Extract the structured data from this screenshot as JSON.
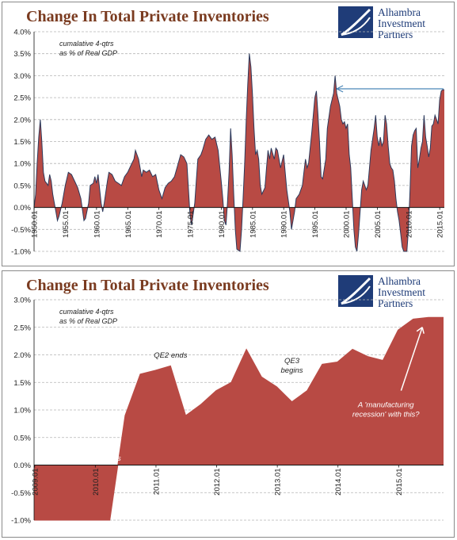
{
  "chart_data": [
    {
      "type": "area",
      "title": "Change In Total Private Inventories",
      "annotation": "cumalative 4-qtrs\nas % of Real GDP",
      "ylim": [
        -1.0,
        4.0
      ],
      "y_ticks": [
        "4.0%",
        "3.5%",
        "3.0%",
        "2.5%",
        "2.0%",
        "1.5%",
        "1.0%",
        "0.5%",
        "0.0%",
        "-0.5%",
        "-1.0%"
      ],
      "x_tick_labels": [
        "1950.01",
        "1955.01",
        "1960.01",
        "1965.01",
        "1970.01",
        "1975.01",
        "1980.01",
        "1985.01",
        "1990.01",
        "1995.01",
        "2000.01",
        "2005.01",
        "2010.01",
        "2015.01"
      ],
      "xlim": [
        1950.0,
        2015.75
      ],
      "grid": "horizontal dashed",
      "colors": {
        "fill": "#b84a44",
        "line": "#2c3a5c"
      },
      "arrow": {
        "direction": "left",
        "color": "#4a86b8"
      },
      "series": [
        {
          "values": [
            [
              1950.0,
              0.0
            ],
            [
              1950.25,
              0.3
            ],
            [
              1950.5,
              1.0
            ],
            [
              1950.75,
              1.6
            ],
            [
              1951.0,
              2.0
            ],
            [
              1951.25,
              1.5
            ],
            [
              1951.5,
              0.8
            ],
            [
              1951.75,
              0.6
            ],
            [
              1952.0,
              0.55
            ],
            [
              1952.25,
              0.5
            ],
            [
              1952.5,
              0.75
            ],
            [
              1952.75,
              0.6
            ],
            [
              1953.0,
              0.3
            ],
            [
              1953.25,
              0.1
            ],
            [
              1953.5,
              -0.1
            ],
            [
              1953.75,
              -0.3
            ],
            [
              1954.0,
              -0.2
            ],
            [
              1954.5,
              0.1
            ],
            [
              1955.0,
              0.5
            ],
            [
              1955.5,
              0.8
            ],
            [
              1956.0,
              0.75
            ],
            [
              1956.5,
              0.6
            ],
            [
              1957.0,
              0.45
            ],
            [
              1957.5,
              0.2
            ],
            [
              1958.0,
              -0.3
            ],
            [
              1958.25,
              -0.25
            ],
            [
              1958.75,
              0.1
            ],
            [
              1959.0,
              0.5
            ],
            [
              1959.5,
              0.55
            ],
            [
              1959.75,
              0.7
            ],
            [
              1960.0,
              0.55
            ],
            [
              1960.25,
              0.75
            ],
            [
              1960.75,
              0.1
            ],
            [
              1961.0,
              -0.1
            ],
            [
              1961.25,
              0.1
            ],
            [
              1961.75,
              0.6
            ],
            [
              1962.0,
              0.8
            ],
            [
              1962.5,
              0.75
            ],
            [
              1963.0,
              0.6
            ],
            [
              1963.5,
              0.55
            ],
            [
              1964.0,
              0.5
            ],
            [
              1964.5,
              0.7
            ],
            [
              1965.0,
              0.8
            ],
            [
              1965.5,
              0.95
            ],
            [
              1966.0,
              1.1
            ],
            [
              1966.25,
              1.3
            ],
            [
              1966.75,
              1.1
            ],
            [
              1967.0,
              0.9
            ],
            [
              1967.25,
              0.7
            ],
            [
              1967.5,
              0.85
            ],
            [
              1968.0,
              0.8
            ],
            [
              1968.5,
              0.85
            ],
            [
              1969.0,
              0.7
            ],
            [
              1969.5,
              0.75
            ],
            [
              1970.0,
              0.4
            ],
            [
              1970.5,
              0.2
            ],
            [
              1971.0,
              0.45
            ],
            [
              1971.5,
              0.55
            ],
            [
              1972.0,
              0.6
            ],
            [
              1972.5,
              0.7
            ],
            [
              1973.0,
              0.95
            ],
            [
              1973.5,
              1.2
            ],
            [
              1974.0,
              1.15
            ],
            [
              1974.5,
              1.0
            ],
            [
              1974.75,
              0.4
            ],
            [
              1975.0,
              -0.2
            ],
            [
              1975.25,
              -0.4
            ],
            [
              1975.75,
              0.1
            ],
            [
              1976.0,
              0.6
            ],
            [
              1976.25,
              1.1
            ],
            [
              1976.75,
              1.2
            ],
            [
              1977.0,
              1.3
            ],
            [
              1977.5,
              1.55
            ],
            [
              1978.0,
              1.65
            ],
            [
              1978.5,
              1.55
            ],
            [
              1979.0,
              1.6
            ],
            [
              1979.5,
              1.3
            ],
            [
              1980.0,
              0.6
            ],
            [
              1980.25,
              0.2
            ],
            [
              1980.5,
              -0.3
            ],
            [
              1980.75,
              -0.4
            ],
            [
              1981.0,
              0.1
            ],
            [
              1981.25,
              0.8
            ],
            [
              1981.5,
              1.8
            ],
            [
              1981.75,
              1.2
            ],
            [
              1982.0,
              0.3
            ],
            [
              1982.25,
              -0.5
            ],
            [
              1982.5,
              -0.95
            ],
            [
              1983.0,
              -1.05
            ],
            [
              1983.25,
              -0.5
            ],
            [
              1983.5,
              0.2
            ],
            [
              1983.75,
              1.0
            ],
            [
              1984.0,
              2.0
            ],
            [
              1984.25,
              2.8
            ],
            [
              1984.5,
              3.5
            ],
            [
              1984.75,
              3.2
            ],
            [
              1985.0,
              2.6
            ],
            [
              1985.25,
              1.8
            ],
            [
              1985.5,
              1.2
            ],
            [
              1985.75,
              1.3
            ],
            [
              1986.0,
              1.1
            ],
            [
              1986.25,
              0.5
            ],
            [
              1986.5,
              0.3
            ],
            [
              1987.0,
              0.45
            ],
            [
              1987.25,
              0.9
            ],
            [
              1987.5,
              1.3
            ],
            [
              1987.75,
              1.1
            ],
            [
              1988.0,
              1.35
            ],
            [
              1988.5,
              1.1
            ],
            [
              1988.75,
              1.35
            ],
            [
              1989.0,
              1.3
            ],
            [
              1989.5,
              0.9
            ],
            [
              1990.0,
              1.2
            ],
            [
              1990.25,
              0.8
            ],
            [
              1990.5,
              0.4
            ],
            [
              1991.0,
              -0.1
            ],
            [
              1991.25,
              -0.5
            ],
            [
              1991.75,
              -0.1
            ],
            [
              1992.0,
              0.2
            ],
            [
              1992.5,
              0.3
            ],
            [
              1993.0,
              0.5
            ],
            [
              1993.25,
              0.8
            ],
            [
              1993.5,
              1.1
            ],
            [
              1993.75,
              0.9
            ],
            [
              1994.0,
              1.0
            ],
            [
              1994.5,
              1.7
            ],
            [
              1995.0,
              2.5
            ],
            [
              1995.25,
              2.65
            ],
            [
              1995.5,
              2.1
            ],
            [
              1995.75,
              1.5
            ],
            [
              1996.0,
              0.7
            ],
            [
              1996.25,
              0.65
            ],
            [
              1996.75,
              1.1
            ],
            [
              1997.0,
              1.8
            ],
            [
              1997.5,
              2.3
            ],
            [
              1998.0,
              2.6
            ],
            [
              1998.25,
              3.0
            ],
            [
              1998.5,
              2.6
            ],
            [
              1999.0,
              2.3
            ],
            [
              1999.25,
              2.0
            ],
            [
              1999.5,
              1.9
            ],
            [
              1999.75,
              1.95
            ],
            [
              2000.0,
              1.8
            ],
            [
              2000.25,
              1.9
            ],
            [
              2000.5,
              1.2
            ],
            [
              2000.75,
              0.9
            ],
            [
              2001.0,
              0.2
            ],
            [
              2001.25,
              -0.5
            ],
            [
              2001.5,
              -0.9
            ],
            [
              2001.75,
              -1.05
            ],
            [
              2002.0,
              -0.6
            ],
            [
              2002.5,
              0.4
            ],
            [
              2002.75,
              0.6
            ],
            [
              2003.0,
              0.5
            ],
            [
              2003.25,
              0.4
            ],
            [
              2003.5,
              0.5
            ],
            [
              2003.75,
              0.9
            ],
            [
              2004.0,
              1.3
            ],
            [
              2004.5,
              1.8
            ],
            [
              2004.75,
              2.1
            ],
            [
              2005.0,
              1.6
            ],
            [
              2005.25,
              1.4
            ],
            [
              2005.5,
              1.6
            ],
            [
              2005.75,
              1.4
            ],
            [
              2006.0,
              1.5
            ],
            [
              2006.25,
              2.1
            ],
            [
              2006.5,
              1.9
            ],
            [
              2006.75,
              1.4
            ],
            [
              2007.0,
              1.0
            ],
            [
              2007.25,
              0.9
            ],
            [
              2007.5,
              0.85
            ],
            [
              2007.75,
              0.6
            ],
            [
              2008.0,
              0.2
            ],
            [
              2008.25,
              -0.1
            ],
            [
              2008.5,
              -0.3
            ],
            [
              2008.75,
              -0.6
            ],
            [
              2009.0,
              -0.9
            ],
            [
              2009.25,
              -1.05
            ],
            [
              2009.75,
              -1.05
            ],
            [
              2010.0,
              -0.5
            ],
            [
              2010.25,
              0.4
            ],
            [
              2010.5,
              1.4
            ],
            [
              2010.75,
              1.65
            ],
            [
              2011.0,
              1.75
            ],
            [
              2011.25,
              1.8
            ],
            [
              2011.5,
              0.9
            ],
            [
              2011.75,
              1.1
            ],
            [
              2012.0,
              1.35
            ],
            [
              2012.25,
              1.5
            ],
            [
              2012.5,
              2.1
            ],
            [
              2012.75,
              1.6
            ],
            [
              2013.0,
              1.4
            ],
            [
              2013.25,
              1.15
            ],
            [
              2013.5,
              1.35
            ],
            [
              2013.75,
              1.85
            ],
            [
              2014.0,
              1.9
            ],
            [
              2014.25,
              2.1
            ],
            [
              2014.5,
              2.0
            ],
            [
              2014.75,
              1.9
            ],
            [
              2015.0,
              2.45
            ],
            [
              2015.25,
              2.65
            ],
            [
              2015.5,
              2.68
            ],
            [
              2015.75,
              2.68
            ]
          ]
        }
      ]
    },
    {
      "type": "area",
      "title": "Change In Total Private Inventories",
      "annotation": "cumalative 4-qtrs\nas % of Real GDP",
      "ylim": [
        -1.0,
        3.0
      ],
      "y_ticks": [
        "3.0%",
        "2.5%",
        "2.0%",
        "1.5%",
        "1.0%",
        "0.5%",
        "0.0%",
        "-0.5%",
        "-1.0%"
      ],
      "x_tick_labels": [
        "2009.01",
        "2010.01",
        "2011.01",
        "2012.01",
        "2013.01",
        "2014.01",
        "2015.01"
      ],
      "xlim": [
        2009.0,
        2015.75
      ],
      "grid": "horizontal dashed",
      "colors": {
        "fill": "#b84a44",
        "line": "#b84a44"
      },
      "text_annotations": [
        {
          "text": "QE2\nbegins",
          "x": 2010.25,
          "y": 0.25,
          "color": "#ffffff"
        },
        {
          "text": "QE2 ends",
          "x": 2011.25,
          "y": 1.95,
          "color": "#222222"
        },
        {
          "text": "QE3\nbegins",
          "x": 2013.25,
          "y": 1.85,
          "color": "#222222"
        },
        {
          "text": "A 'manufacturing\nrecession' with this?",
          "x": 2014.8,
          "y": 1.05,
          "color": "#ffffff"
        }
      ],
      "arrow": {
        "direction": "up-right",
        "color": "#ffffff"
      },
      "series": [
        {
          "values": [
            [
              2009.0,
              -1.05
            ],
            [
              2009.25,
              -1.05
            ],
            [
              2009.5,
              -1.05
            ],
            [
              2009.75,
              -1.05
            ],
            [
              2010.0,
              -1.05
            ],
            [
              2010.25,
              -1.05
            ],
            [
              2010.5,
              0.9
            ],
            [
              2010.75,
              1.65
            ],
            [
              2011.0,
              1.72
            ],
            [
              2011.25,
              1.8
            ],
            [
              2011.5,
              0.9
            ],
            [
              2011.75,
              1.1
            ],
            [
              2012.0,
              1.35
            ],
            [
              2012.25,
              1.5
            ],
            [
              2012.5,
              2.1
            ],
            [
              2012.75,
              1.6
            ],
            [
              2013.0,
              1.42
            ],
            [
              2013.25,
              1.15
            ],
            [
              2013.5,
              1.35
            ],
            [
              2013.75,
              1.83
            ],
            [
              2014.0,
              1.87
            ],
            [
              2014.25,
              2.1
            ],
            [
              2014.5,
              1.97
            ],
            [
              2014.75,
              1.9
            ],
            [
              2015.0,
              2.45
            ],
            [
              2015.25,
              2.65
            ],
            [
              2015.5,
              2.68
            ],
            [
              2015.75,
              2.68
            ]
          ]
        }
      ]
    }
  ],
  "logo": {
    "lines": [
      "Alhambra",
      "Investment",
      "Partners"
    ],
    "color": "#1f3c78"
  }
}
